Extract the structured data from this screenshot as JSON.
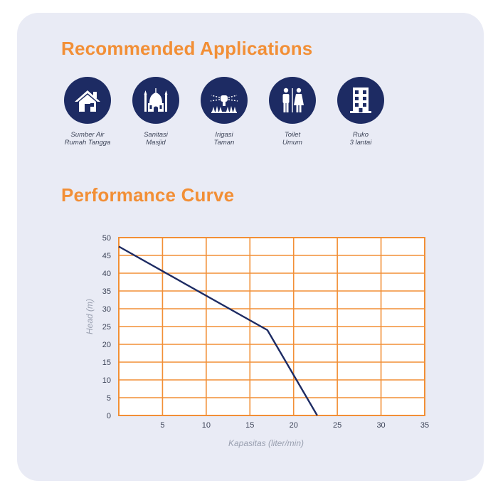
{
  "recommended_title": "Recommended Applications",
  "applications": [
    {
      "icon": "house-icon",
      "line1": "Sumber Air",
      "line2": "Rumah Tangga"
    },
    {
      "icon": "mosque-icon",
      "line1": "Sanitasi",
      "line2": "Masjid"
    },
    {
      "icon": "sprinkler-icon",
      "line1": "Irigasi",
      "line2": "Taman"
    },
    {
      "icon": "restroom-icon",
      "line1": "Toilet",
      "line2": "Umum"
    },
    {
      "icon": "building-icon",
      "line1": "Ruko",
      "line2": "3 lantai"
    }
  ],
  "performance_title": "Performance Curve",
  "colors": {
    "accent": "#f28f36",
    "navy": "#1d2b63",
    "card": "#e9ebf5"
  },
  "chart_data": {
    "type": "line",
    "title": "Performance Curve",
    "xlabel": "Kapasitas (liter/min)",
    "ylabel": "Head (m)",
    "xlim": [
      0,
      35
    ],
    "ylim": [
      0,
      50
    ],
    "xticks": [
      "5",
      "10",
      "15",
      "20",
      "25",
      "30",
      "35"
    ],
    "yticks": [
      "0",
      "5",
      "10",
      "15",
      "20",
      "25",
      "30",
      "35",
      "40",
      "45",
      "50"
    ],
    "grid": true,
    "series": [
      {
        "x": [
          0,
          17,
          22.7
        ],
        "y": [
          47.5,
          24,
          0
        ]
      }
    ]
  }
}
